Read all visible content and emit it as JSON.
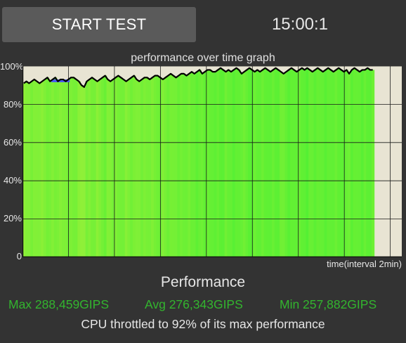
{
  "header": {
    "start_button_label": "START TEST",
    "timer": "15:00:1"
  },
  "graph": {
    "title": "performance over time graph",
    "y_ticks": [
      "100%",
      "80%",
      "60%",
      "40%",
      "20%",
      "0"
    ],
    "x_label": "time(interval 2min)"
  },
  "colors": {
    "background": "#333333",
    "bar_high": "#66f033",
    "bar_low": "#9af039",
    "plot_bg": "#e8e4d3",
    "line": "#000000",
    "stat_text": "#33b52e"
  },
  "chart_data": {
    "type": "bar",
    "title": "performance over time graph",
    "xlabel": "time(interval 2min)",
    "ylabel": "",
    "ylim": [
      0,
      100
    ],
    "xlim_minutes": [
      0,
      16.5
    ],
    "grid": true,
    "y_ticks": [
      0,
      20,
      40,
      60,
      80,
      100
    ],
    "x_grid_interval_minutes": 2,
    "series": [
      {
        "values": [
          91,
          92,
          91,
          92,
          93,
          92,
          91,
          92,
          93,
          94,
          92,
          93,
          94,
          92,
          93,
          93,
          92,
          93,
          94,
          94,
          93,
          92,
          90,
          89,
          92,
          93,
          94,
          93,
          92,
          93,
          94,
          95,
          93,
          92,
          93,
          94,
          95,
          94,
          93,
          92,
          93,
          94,
          95,
          93,
          92,
          93,
          94,
          94,
          93,
          94,
          95,
          95,
          94,
          93,
          94,
          95,
          96,
          95,
          94,
          95,
          96,
          96,
          95,
          96,
          97,
          96,
          97,
          98,
          96,
          97,
          98,
          98,
          97,
          97,
          98,
          99,
          98,
          97,
          98,
          97,
          98,
          99,
          98,
          96,
          97,
          98,
          99,
          98,
          97,
          98,
          97,
          98,
          99,
          98,
          97,
          98,
          99,
          98,
          97,
          96,
          97,
          98,
          99,
          98,
          97,
          98,
          99,
          98,
          99,
          98,
          97,
          98,
          99,
          98,
          97,
          98,
          99,
          98,
          97,
          98,
          99,
          98,
          97,
          98,
          96,
          98,
          99,
          98,
          97,
          98,
          98,
          99,
          98,
          98
        ]
      }
    ]
  },
  "performance": {
    "title": "Performance",
    "max": "Max 288,459GIPS",
    "avg": "Avg 276,343GIPS",
    "min": "Min 257,882GIPS",
    "throttle_text": "CPU throttled to 92% of its max performance"
  }
}
